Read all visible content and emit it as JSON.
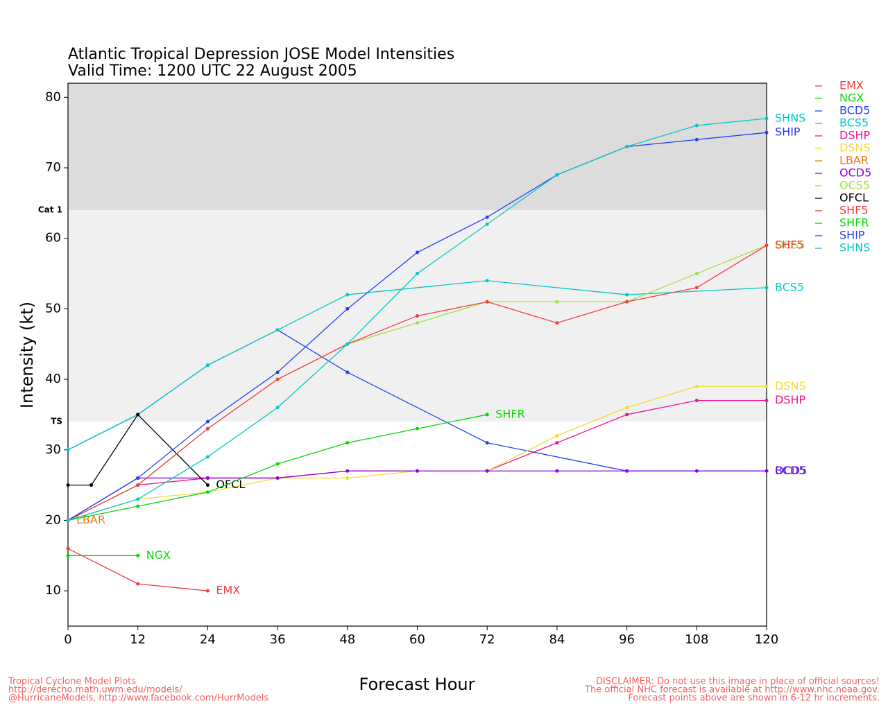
{
  "chart_data": {
    "type": "line",
    "title": "Atlantic Tropical Depression JOSE Model Intensities",
    "subtitle": "Valid Time: 1200 UTC 22 August 2005",
    "x_label": "Forecast Hour",
    "y_label": "Intensity (kt)",
    "xlim": [
      0,
      120
    ],
    "xticks": [
      0,
      12,
      24,
      36,
      48,
      60,
      72,
      84,
      96,
      108,
      120
    ],
    "ylim": [
      5,
      82
    ],
    "yticks": [
      10,
      20,
      30,
      40,
      50,
      60,
      70,
      80
    ],
    "thresholds": [
      {
        "label": "Cat 1",
        "value": 64
      },
      {
        "label": "TS",
        "value": 34
      }
    ],
    "series": [
      {
        "name": "EMX",
        "color": "#f03c3c",
        "x": [
          0,
          12,
          24
        ],
        "values": [
          16,
          11,
          10
        ]
      },
      {
        "name": "NGX",
        "color": "#00d800",
        "x": [
          0,
          12
        ],
        "values": [
          15,
          15
        ]
      },
      {
        "name": "BCD5",
        "color": "#2040f0",
        "x": [
          0,
          12,
          24,
          36,
          48,
          72,
          96,
          120
        ],
        "values": [
          30,
          35,
          42,
          47,
          41,
          31,
          27,
          27
        ]
      },
      {
        "name": "BCS5",
        "color": "#00c8c8",
        "x": [
          0,
          12,
          24,
          36,
          48,
          72,
          96,
          120
        ],
        "values": [
          30,
          35,
          42,
          47,
          52,
          54,
          52,
          53
        ]
      },
      {
        "name": "DSHP",
        "color": "#f0148c",
        "x": [
          0,
          12,
          24,
          36,
          48,
          60,
          72,
          84,
          96,
          108,
          120
        ],
        "values": [
          20,
          25,
          26,
          26,
          27,
          27,
          27,
          31,
          35,
          37,
          37
        ]
      },
      {
        "name": "DSNS",
        "color": "#f0dc30",
        "x": [
          0,
          12,
          24,
          36,
          48,
          60,
          72,
          84,
          96,
          108,
          120
        ],
        "values": [
          20,
          23,
          24,
          26,
          26,
          27,
          27,
          32,
          36,
          39,
          39
        ]
      },
      {
        "name": "LBAR",
        "color": "#f07820",
        "x": [
          0
        ],
        "values": [
          20
        ]
      },
      {
        "name": "OCD5",
        "color": "#9600dc",
        "x": [
          0,
          12,
          24,
          36,
          48,
          60,
          72,
          84,
          96,
          108,
          120
        ],
        "values": [
          20,
          26,
          26,
          26,
          27,
          27,
          27,
          27,
          27,
          27,
          27
        ]
      },
      {
        "name": "OCS5",
        "color": "#a0e040",
        "x": [
          0,
          12,
          24,
          36,
          48,
          60,
          72,
          84,
          96,
          108,
          120
        ],
        "values": [
          20,
          25,
          33,
          40,
          45,
          48,
          51,
          51,
          51,
          55,
          59
        ]
      },
      {
        "name": "OFCL",
        "color": "#000000",
        "x": [
          0,
          4,
          12,
          24
        ],
        "values": [
          25,
          25,
          35,
          25
        ]
      },
      {
        "name": "SHF5",
        "color": "#f03c3c",
        "x": [
          0,
          12,
          24,
          36,
          48,
          60,
          72,
          84,
          96,
          108,
          120
        ],
        "values": [
          20,
          25,
          33,
          40,
          45,
          49,
          51,
          48,
          51,
          53,
          59
        ]
      },
      {
        "name": "SHFR",
        "color": "#00d800",
        "x": [
          0,
          12,
          24,
          36,
          48,
          60,
          72
        ],
        "values": [
          20,
          22,
          24,
          28,
          31,
          33,
          35
        ]
      },
      {
        "name": "SHIP",
        "color": "#2040f0",
        "x": [
          0,
          12,
          24,
          36,
          48,
          60,
          72,
          84,
          96,
          108,
          120
        ],
        "values": [
          20,
          26,
          34,
          41,
          50,
          58,
          63,
          69,
          73,
          74,
          75
        ]
      },
      {
        "name": "SHNS",
        "color": "#00c8c8",
        "x": [
          0,
          12,
          24,
          36,
          48,
          60,
          72,
          84,
          96,
          108,
          120
        ],
        "values": [
          20,
          23,
          29,
          36,
          45,
          55,
          62,
          69,
          73,
          76,
          77
        ]
      }
    ],
    "footer_left": [
      "Tropical Cyclone Model Plots",
      "http://derecho.math.uwm.edu/models/",
      "@HurricaneModels, http://www.facebook.com/HurrModels"
    ],
    "footer_right": [
      "DISCLAIMER: Do not use this image in place of official sources!",
      "The official NHC forecast is available at http://www.nhc.noaa.gov.",
      "Forecast points above are shown in 6-12 hr increments."
    ]
  }
}
